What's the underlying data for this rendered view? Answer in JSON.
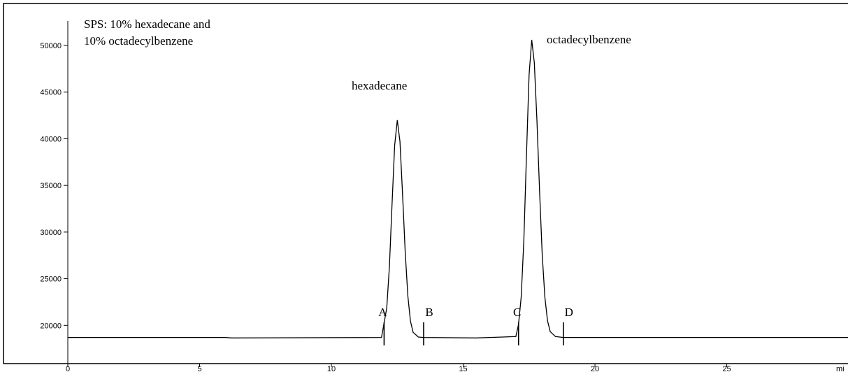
{
  "chart_data": {
    "type": "line",
    "annotations": [
      "SPS: 10% hexadecane and",
      "10% octadecylbenzene",
      "hexadecane",
      "octadecylbenzene"
    ],
    "xlabel": "mi",
    "xlim": [
      0,
      29.6
    ],
    "ylim": [
      15900,
      54500
    ],
    "xticks": [
      0,
      5,
      10,
      15,
      20,
      25
    ],
    "yticks": [
      20000,
      25000,
      30000,
      35000,
      40000,
      45000,
      50000
    ],
    "color": "#000000",
    "x": [
      0,
      6,
      6.2,
      11.9,
      12.1,
      12.2,
      12.3,
      12.4,
      12.5,
      12.6,
      12.7,
      12.8,
      12.9,
      13.0,
      13.1,
      13.3,
      13.5,
      15.5,
      16.0,
      16.5,
      17.0,
      17.1,
      17.2,
      17.3,
      17.4,
      17.5,
      17.6,
      17.7,
      17.8,
      17.9,
      18.0,
      18.1,
      18.2,
      18.3,
      18.5,
      18.8,
      29.6
    ],
    "values": [
      18700,
      18700,
      18650,
      18700,
      21850,
      26270,
      32840,
      39260,
      42000,
      39720,
      34100,
      27900,
      23150,
      20460,
      19260,
      18750,
      18700,
      18650,
      18700,
      18750,
      18800,
      20100,
      23010,
      29070,
      38060,
      46840,
      50600,
      48150,
      41860,
      34230,
      27570,
      23010,
      20490,
      19330,
      18800,
      18700,
      18700
    ],
    "markers": [
      {
        "label": "A",
        "x": 12.0
      },
      {
        "label": "B",
        "x": 13.5
      },
      {
        "label": "C",
        "x": 17.1
      },
      {
        "label": "D",
        "x": 18.8
      }
    ]
  }
}
